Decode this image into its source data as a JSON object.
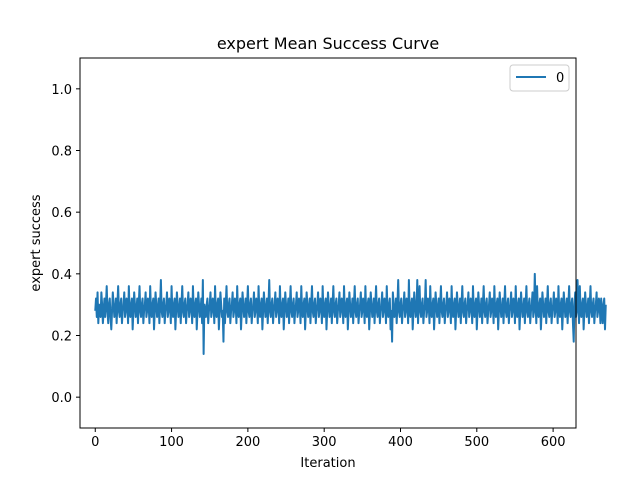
{
  "chart_data": {
    "type": "line",
    "title": "expert Mean Success Curve",
    "xlabel": "Iteration",
    "ylabel": "expert success",
    "xlim": [
      -20,
      630
    ],
    "ylim": [
      -0.1,
      1.1
    ],
    "xticks": [
      0,
      100,
      200,
      300,
      400,
      500,
      600
    ],
    "xtick_labels": [
      "0",
      "100",
      "200",
      "300",
      "400",
      "500",
      "600"
    ],
    "yticks": [
      0.0,
      0.2,
      0.4,
      0.6,
      0.8,
      1.0
    ],
    "ytick_labels": [
      "0.0",
      "0.2",
      "0.4",
      "0.6",
      "0.8",
      "1.0"
    ],
    "grid": false,
    "legend_position": "top-right",
    "series": [
      {
        "name": "0",
        "color": "#1f77b4",
        "x_start": 0,
        "x_step": 1,
        "values": [
          0.28,
          0.32,
          0.26,
          0.34,
          0.24,
          0.3,
          0.28,
          0.26,
          0.34,
          0.3,
          0.24,
          0.28,
          0.32,
          0.26,
          0.3,
          0.36,
          0.28,
          0.24,
          0.3,
          0.32,
          0.26,
          0.22,
          0.28,
          0.34,
          0.3,
          0.26,
          0.28,
          0.32,
          0.24,
          0.3,
          0.36,
          0.28,
          0.26,
          0.3,
          0.32,
          0.24,
          0.28,
          0.3,
          0.34,
          0.26,
          0.28,
          0.32,
          0.3,
          0.24,
          0.36,
          0.28,
          0.26,
          0.3,
          0.32,
          0.22,
          0.28,
          0.34,
          0.3,
          0.26,
          0.28,
          0.32,
          0.24,
          0.3,
          0.36,
          0.28,
          0.26,
          0.3,
          0.32,
          0.24,
          0.28,
          0.3,
          0.34,
          0.26,
          0.28,
          0.32,
          0.3,
          0.24,
          0.36,
          0.28,
          0.26,
          0.3,
          0.32,
          0.22,
          0.28,
          0.34,
          0.3,
          0.26,
          0.28,
          0.32,
          0.24,
          0.3,
          0.38,
          0.28,
          0.26,
          0.3,
          0.32,
          0.24,
          0.28,
          0.3,
          0.34,
          0.26,
          0.28,
          0.32,
          0.3,
          0.24,
          0.36,
          0.28,
          0.26,
          0.3,
          0.32,
          0.22,
          0.28,
          0.34,
          0.3,
          0.26,
          0.28,
          0.32,
          0.24,
          0.3,
          0.36,
          0.28,
          0.26,
          0.3,
          0.32,
          0.24,
          0.28,
          0.3,
          0.34,
          0.26,
          0.28,
          0.32,
          0.3,
          0.24,
          0.36,
          0.28,
          0.26,
          0.3,
          0.32,
          0.22,
          0.28,
          0.34,
          0.3,
          0.26,
          0.28,
          0.32,
          0.24,
          0.38,
          0.14,
          0.3,
          0.28,
          0.26,
          0.3,
          0.32,
          0.24,
          0.28,
          0.3,
          0.34,
          0.26,
          0.28,
          0.32,
          0.3,
          0.24,
          0.36,
          0.28,
          0.26,
          0.3,
          0.32,
          0.22,
          0.28,
          0.34,
          0.3,
          0.26,
          0.28,
          0.18,
          0.32,
          0.24,
          0.3,
          0.36,
          0.28,
          0.26,
          0.3,
          0.32,
          0.24,
          0.28,
          0.3,
          0.34,
          0.26,
          0.28,
          0.32,
          0.3,
          0.24,
          0.36,
          0.28,
          0.26,
          0.3,
          0.32,
          0.22,
          0.28,
          0.34,
          0.3,
          0.26,
          0.28,
          0.32,
          0.24,
          0.3,
          0.36,
          0.28,
          0.26,
          0.3,
          0.32,
          0.24,
          0.28,
          0.3,
          0.34,
          0.26,
          0.28,
          0.32,
          0.3,
          0.24,
          0.36,
          0.28,
          0.26,
          0.3,
          0.32,
          0.22,
          0.28,
          0.34,
          0.3,
          0.26,
          0.28,
          0.32,
          0.24,
          0.3,
          0.38,
          0.28,
          0.26,
          0.3,
          0.32,
          0.24,
          0.28,
          0.3,
          0.34,
          0.26,
          0.28,
          0.32,
          0.3,
          0.24,
          0.36,
          0.28,
          0.26,
          0.3,
          0.32,
          0.22,
          0.28,
          0.34,
          0.3,
          0.26,
          0.28,
          0.32,
          0.24,
          0.3,
          0.36,
          0.28,
          0.26,
          0.3,
          0.32,
          0.24,
          0.28,
          0.3,
          0.34,
          0.26,
          0.28,
          0.32,
          0.3,
          0.24,
          0.36,
          0.28,
          0.26,
          0.3,
          0.32,
          0.22,
          0.28,
          0.34,
          0.3,
          0.26,
          0.28,
          0.32,
          0.24,
          0.3,
          0.36,
          0.28,
          0.26,
          0.3,
          0.32,
          0.24,
          0.28,
          0.3,
          0.34,
          0.26,
          0.28,
          0.32,
          0.3,
          0.24,
          0.36,
          0.28,
          0.26,
          0.3,
          0.32,
          0.22,
          0.28,
          0.34,
          0.3,
          0.26,
          0.28,
          0.32,
          0.24,
          0.3,
          0.36,
          0.28,
          0.26,
          0.3,
          0.32,
          0.24,
          0.28,
          0.3,
          0.34,
          0.26,
          0.28,
          0.32,
          0.3,
          0.24,
          0.36,
          0.28,
          0.26,
          0.3,
          0.32,
          0.22,
          0.28,
          0.34,
          0.3,
          0.26,
          0.28,
          0.32,
          0.24,
          0.3,
          0.36,
          0.28,
          0.26,
          0.3,
          0.32,
          0.24,
          0.28,
          0.3,
          0.34,
          0.26,
          0.28,
          0.32,
          0.3,
          0.24,
          0.36,
          0.28,
          0.26,
          0.3,
          0.32,
          0.22,
          0.28,
          0.34,
          0.3,
          0.26,
          0.28,
          0.32,
          0.24,
          0.3,
          0.36,
          0.28,
          0.26,
          0.3,
          0.32,
          0.24,
          0.28,
          0.3,
          0.34,
          0.26,
          0.28,
          0.32,
          0.3,
          0.24,
          0.36,
          0.28,
          0.26,
          0.3,
          0.32,
          0.22,
          0.28,
          0.18,
          0.34,
          0.3,
          0.26,
          0.28,
          0.32,
          0.24,
          0.3,
          0.38,
          0.28,
          0.26,
          0.3,
          0.32,
          0.24,
          0.28,
          0.3,
          0.34,
          0.26,
          0.28,
          0.32,
          0.3,
          0.24,
          0.38,
          0.28,
          0.26,
          0.3,
          0.32,
          0.22,
          0.28,
          0.34,
          0.3,
          0.26,
          0.28,
          0.38,
          0.24,
          0.3,
          0.36,
          0.28,
          0.26,
          0.3,
          0.32,
          0.24,
          0.28,
          0.3,
          0.38,
          0.26,
          0.28,
          0.32,
          0.3,
          0.24,
          0.36,
          0.28,
          0.26,
          0.3,
          0.32,
          0.22,
          0.28,
          0.34,
          0.3,
          0.26,
          0.28,
          0.32,
          0.24,
          0.3,
          0.36,
          0.28,
          0.26,
          0.3,
          0.32,
          0.24,
          0.28,
          0.3,
          0.34,
          0.26,
          0.28,
          0.32,
          0.3,
          0.24,
          0.36,
          0.28,
          0.26,
          0.3,
          0.32,
          0.22,
          0.28,
          0.34,
          0.3,
          0.26,
          0.28,
          0.32,
          0.24,
          0.3,
          0.36,
          0.28,
          0.26,
          0.3,
          0.32,
          0.24,
          0.28,
          0.3,
          0.34,
          0.26,
          0.28,
          0.32,
          0.3,
          0.24,
          0.36,
          0.28,
          0.26,
          0.3,
          0.32,
          0.22,
          0.28,
          0.34,
          0.3,
          0.26,
          0.28,
          0.32,
          0.24,
          0.3,
          0.36,
          0.28,
          0.26,
          0.3,
          0.32,
          0.24,
          0.28,
          0.3,
          0.34,
          0.26,
          0.28,
          0.32,
          0.3,
          0.24,
          0.36,
          0.28,
          0.26,
          0.3,
          0.32,
          0.22,
          0.28,
          0.34,
          0.3,
          0.26,
          0.28,
          0.32,
          0.24,
          0.3,
          0.36,
          0.28,
          0.26,
          0.3,
          0.32,
          0.24,
          0.28,
          0.3,
          0.34,
          0.26,
          0.28,
          0.32,
          0.3,
          0.24,
          0.36,
          0.28,
          0.26,
          0.3,
          0.32,
          0.22,
          0.28,
          0.34,
          0.3,
          0.26,
          0.28,
          0.32,
          0.24,
          0.3,
          0.36,
          0.28,
          0.26,
          0.3,
          0.32,
          0.24,
          0.28,
          0.3,
          0.34,
          0.26,
          0.28,
          0.4,
          0.3,
          0.24,
          0.36,
          0.28,
          0.26,
          0.3,
          0.32,
          0.22,
          0.28,
          0.34,
          0.3,
          0.26,
          0.28,
          0.32,
          0.24,
          0.3,
          0.36,
          0.28,
          0.26,
          0.3,
          0.32,
          0.24,
          0.28,
          0.3,
          0.34,
          0.26,
          0.28,
          0.32,
          0.3,
          0.24,
          0.36,
          0.28,
          0.26,
          0.3,
          0.32,
          0.22,
          0.28,
          0.34,
          0.3,
          0.26,
          0.28,
          0.32,
          0.24,
          0.3,
          0.36,
          0.28,
          0.26,
          0.3,
          0.32,
          0.24,
          0.18,
          0.3,
          0.34,
          0.26,
          0.28,
          0.38,
          0.3,
          0.24,
          0.36,
          0.28,
          0.26,
          0.3,
          0.32,
          0.22,
          0.28,
          0.34,
          0.3,
          0.26,
          0.28,
          0.32,
          0.24,
          0.3,
          0.36,
          0.28,
          0.26,
          0.3,
          0.32,
          0.24,
          0.28,
          0.3,
          0.34,
          0.26,
          0.28,
          0.32,
          0.3,
          0.24,
          0.32,
          0.28,
          0.24,
          0.3,
          0.32,
          0.22,
          0.3
        ]
      }
    ]
  }
}
